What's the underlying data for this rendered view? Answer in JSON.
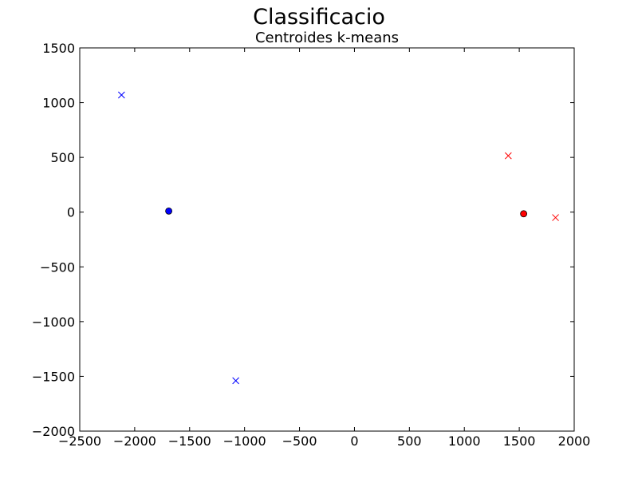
{
  "figure": {
    "suptitle": "Classificacio"
  },
  "chart_data": {
    "type": "scatter",
    "title": "Centroides k-means",
    "xlabel": "",
    "ylabel": "",
    "xlim": [
      -2500,
      2000
    ],
    "ylim": [
      -2000,
      1500
    ],
    "xticks": [
      -2500,
      -2000,
      -1500,
      -1000,
      -500,
      0,
      500,
      1000,
      1500,
      2000
    ],
    "xtick_labels": [
      "−2500",
      "−2000",
      "−1500",
      "−1000",
      "−500",
      "0",
      "500",
      "1000",
      "1500",
      "2000"
    ],
    "yticks": [
      1500,
      1000,
      500,
      0,
      -500,
      -1000,
      -1500,
      -2000
    ],
    "ytick_labels": [
      "1500",
      "1000",
      "500",
      "0",
      "−500",
      "−1000",
      "−1500",
      "−2000"
    ],
    "grid": false,
    "series": [
      {
        "marker": "x",
        "color": "#0000ff",
        "points": [
          [
            -2120,
            1070
          ],
          [
            -1080,
            -1540
          ]
        ]
      },
      {
        "marker": "x",
        "color": "#ff0000",
        "points": [
          [
            1400,
            515
          ],
          [
            1830,
            -50
          ]
        ]
      },
      {
        "marker": "circle",
        "color": "#0000ff",
        "points": [
          [
            -1690,
            10
          ]
        ]
      },
      {
        "marker": "circle",
        "color": "#ff0000",
        "points": [
          [
            1540,
            -15
          ]
        ]
      }
    ]
  }
}
